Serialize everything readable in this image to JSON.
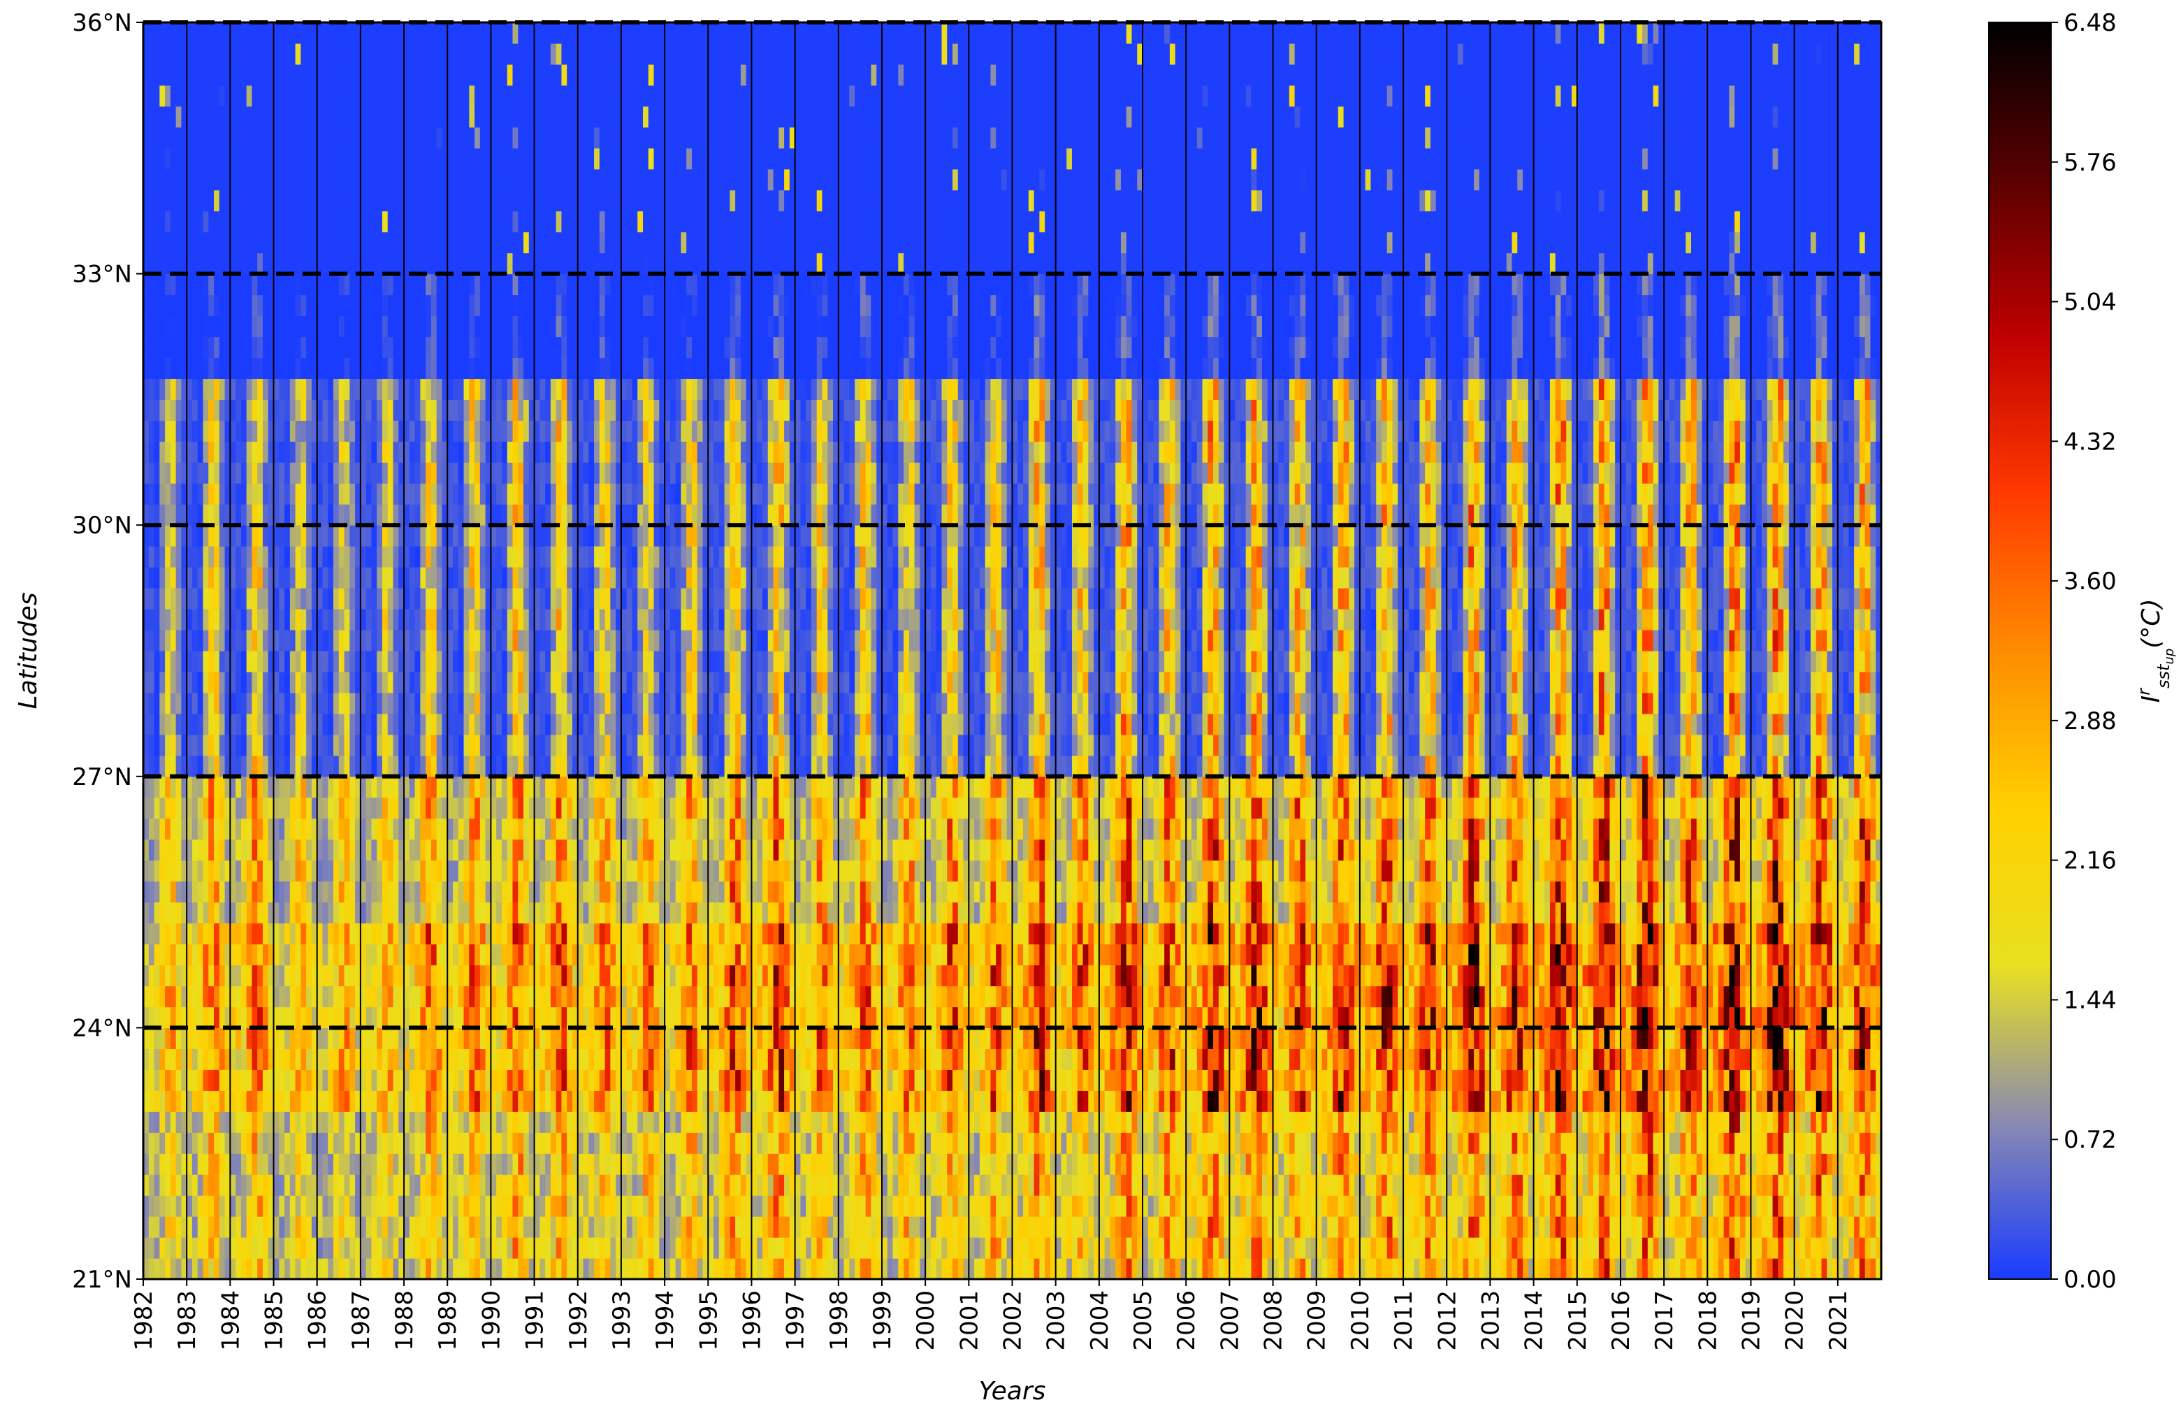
{
  "chart_data": {
    "type": "heatmap",
    "title": "",
    "xlabel": "Years",
    "ylabel": "Latitudes",
    "x_ticks": [
      "1982",
      "1983",
      "1984",
      "1985",
      "1986",
      "1987",
      "1988",
      "1989",
      "1990",
      "1991",
      "1992",
      "1993",
      "1994",
      "1995",
      "1996",
      "1997",
      "1998",
      "1999",
      "2000",
      "2001",
      "2002",
      "2003",
      "2004",
      "2005",
      "2006",
      "2007",
      "2008",
      "2009",
      "2010",
      "2011",
      "2012",
      "2013",
      "2014",
      "2015",
      "2016",
      "2017",
      "2018",
      "2019",
      "2020",
      "2021"
    ],
    "xlim": [
      1982,
      2022
    ],
    "y_ticks": [
      {
        "value": 21,
        "label": "21°N"
      },
      {
        "value": 24,
        "label": "24°N"
      },
      {
        "value": 27,
        "label": "27°N"
      },
      {
        "value": 30,
        "label": "30°N"
      },
      {
        "value": 33,
        "label": "33°N"
      },
      {
        "value": 36,
        "label": "36°N"
      }
    ],
    "ylim": [
      21,
      36
    ],
    "dashed_reference_latitudes": [
      24,
      27,
      30,
      33,
      36
    ],
    "year_separator_lines": true,
    "colorbar": {
      "label": "I^r_sst_up (°C)",
      "label_main": "I",
      "label_sup": "r",
      "label_sub": "sst",
      "label_subsub": "up",
      "label_units": "(°C)",
      "min": 0.0,
      "max": 6.48,
      "ticks": [
        "0.00",
        "0.72",
        "1.44",
        "2.16",
        "2.88",
        "3.60",
        "4.32",
        "5.04",
        "5.76",
        "6.48"
      ],
      "colors": [
        "#1a3cff",
        "#8a8ab0",
        "#e8e020",
        "#ffd000",
        "#ff8c00",
        "#ff3a00",
        "#c00000",
        "#5a0000",
        "#000000"
      ]
    },
    "colors": {
      "low": "#1a3cff",
      "mid": "#ffe600",
      "high": "#ff3a00",
      "peak": "#000000"
    }
  }
}
